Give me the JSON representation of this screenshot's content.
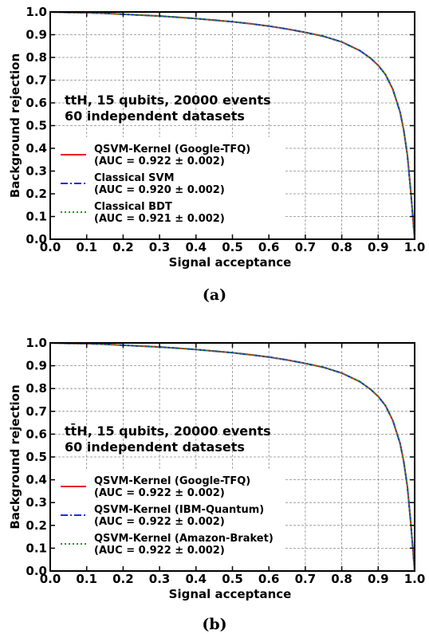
{
  "chart_data": [
    {
      "panel": "a",
      "type": "line",
      "caption": "(a)",
      "xlabel": "Signal acceptance",
      "ylabel": "Background rejection",
      "xlim": [
        0.0,
        1.0
      ],
      "ylim": [
        0.0,
        1.0
      ],
      "xticks": [
        "0.0",
        "0.1",
        "0.2",
        "0.3",
        "0.4",
        "0.5",
        "0.6",
        "0.7",
        "0.8",
        "0.9",
        "1.0"
      ],
      "yticks": [
        "0.0",
        "0.1",
        "0.2",
        "0.3",
        "0.4",
        "0.5",
        "0.6",
        "0.7",
        "0.8",
        "0.9",
        "1.0"
      ],
      "grid": true,
      "annotation": [
        "ttH, 15 qubits, 20000 events",
        "60 independent datasets"
      ],
      "legend_placement": "lower-left",
      "series": [
        {
          "label": "QSVM-Kernel (Google-TFQ)",
          "auc": "(AUC = 0.922 ± 0.002)",
          "color": "#e8201c",
          "style": "solid"
        },
        {
          "label": "Classical SVM",
          "auc": "(AUC = 0.920 ± 0.002)",
          "color": "#1f2ddb",
          "style": "dashdot"
        },
        {
          "label": "Classical BDT",
          "auc": "(AUC = 0.921 ± 0.002)",
          "color": "#1a9a1a",
          "style": "dotted"
        }
      ],
      "x": [
        0.0,
        0.05,
        0.1,
        0.15,
        0.2,
        0.25,
        0.3,
        0.35,
        0.4,
        0.45,
        0.5,
        0.55,
        0.6,
        0.65,
        0.7,
        0.75,
        0.8,
        0.85,
        0.88,
        0.9,
        0.92,
        0.94,
        0.96,
        0.97,
        0.98,
        0.99,
        0.995,
        1.0
      ],
      "y": [
        1.0,
        0.998,
        0.997,
        0.994,
        0.99,
        0.986,
        0.982,
        0.977,
        0.971,
        0.964,
        0.957,
        0.948,
        0.938,
        0.925,
        0.91,
        0.893,
        0.868,
        0.83,
        0.795,
        0.765,
        0.725,
        0.66,
        0.56,
        0.48,
        0.37,
        0.2,
        0.1,
        0.0
      ]
    },
    {
      "panel": "b",
      "type": "line",
      "caption": "(b)",
      "xlabel": "Signal acceptance",
      "ylabel": "Background rejection",
      "xlim": [
        0.0,
        1.0
      ],
      "ylim": [
        0.0,
        1.0
      ],
      "xticks": [
        "0.0",
        "0.1",
        "0.2",
        "0.3",
        "0.4",
        "0.5",
        "0.6",
        "0.7",
        "0.8",
        "0.9",
        "1.0"
      ],
      "yticks": [
        "0.0",
        "0.1",
        "0.2",
        "0.3",
        "0.4",
        "0.5",
        "0.6",
        "0.7",
        "0.8",
        "0.9",
        "1.0"
      ],
      "grid": true,
      "annotation": [
        "tt̄H, 15 qubits, 20000 events",
        "60 independent datasets"
      ],
      "legend_placement": "lower-left",
      "series": [
        {
          "label": "QSVM-Kernel (Google-TFQ)",
          "auc": "(AUC = 0.922 ± 0.002)",
          "color": "#e8201c",
          "style": "solid"
        },
        {
          "label": "QSVM-Kernel (IBM-Quantum)",
          "auc": "(AUC = 0.922 ± 0.002)",
          "color": "#1f2ddb",
          "style": "dashdot"
        },
        {
          "label": "QSVM-Kernel (Amazon-Braket)",
          "auc": "(AUC = 0.922 ± 0.002)",
          "color": "#1a9a1a",
          "style": "dotted"
        }
      ],
      "x": [
        0.0,
        0.05,
        0.1,
        0.15,
        0.2,
        0.25,
        0.3,
        0.35,
        0.4,
        0.45,
        0.5,
        0.55,
        0.6,
        0.65,
        0.7,
        0.75,
        0.8,
        0.85,
        0.88,
        0.9,
        0.92,
        0.94,
        0.96,
        0.97,
        0.98,
        0.99,
        0.995,
        1.0
      ],
      "y": [
        1.0,
        0.998,
        0.997,
        0.994,
        0.99,
        0.986,
        0.982,
        0.977,
        0.971,
        0.964,
        0.957,
        0.948,
        0.938,
        0.925,
        0.91,
        0.893,
        0.868,
        0.83,
        0.795,
        0.765,
        0.725,
        0.66,
        0.56,
        0.48,
        0.37,
        0.2,
        0.1,
        0.0
      ]
    }
  ]
}
